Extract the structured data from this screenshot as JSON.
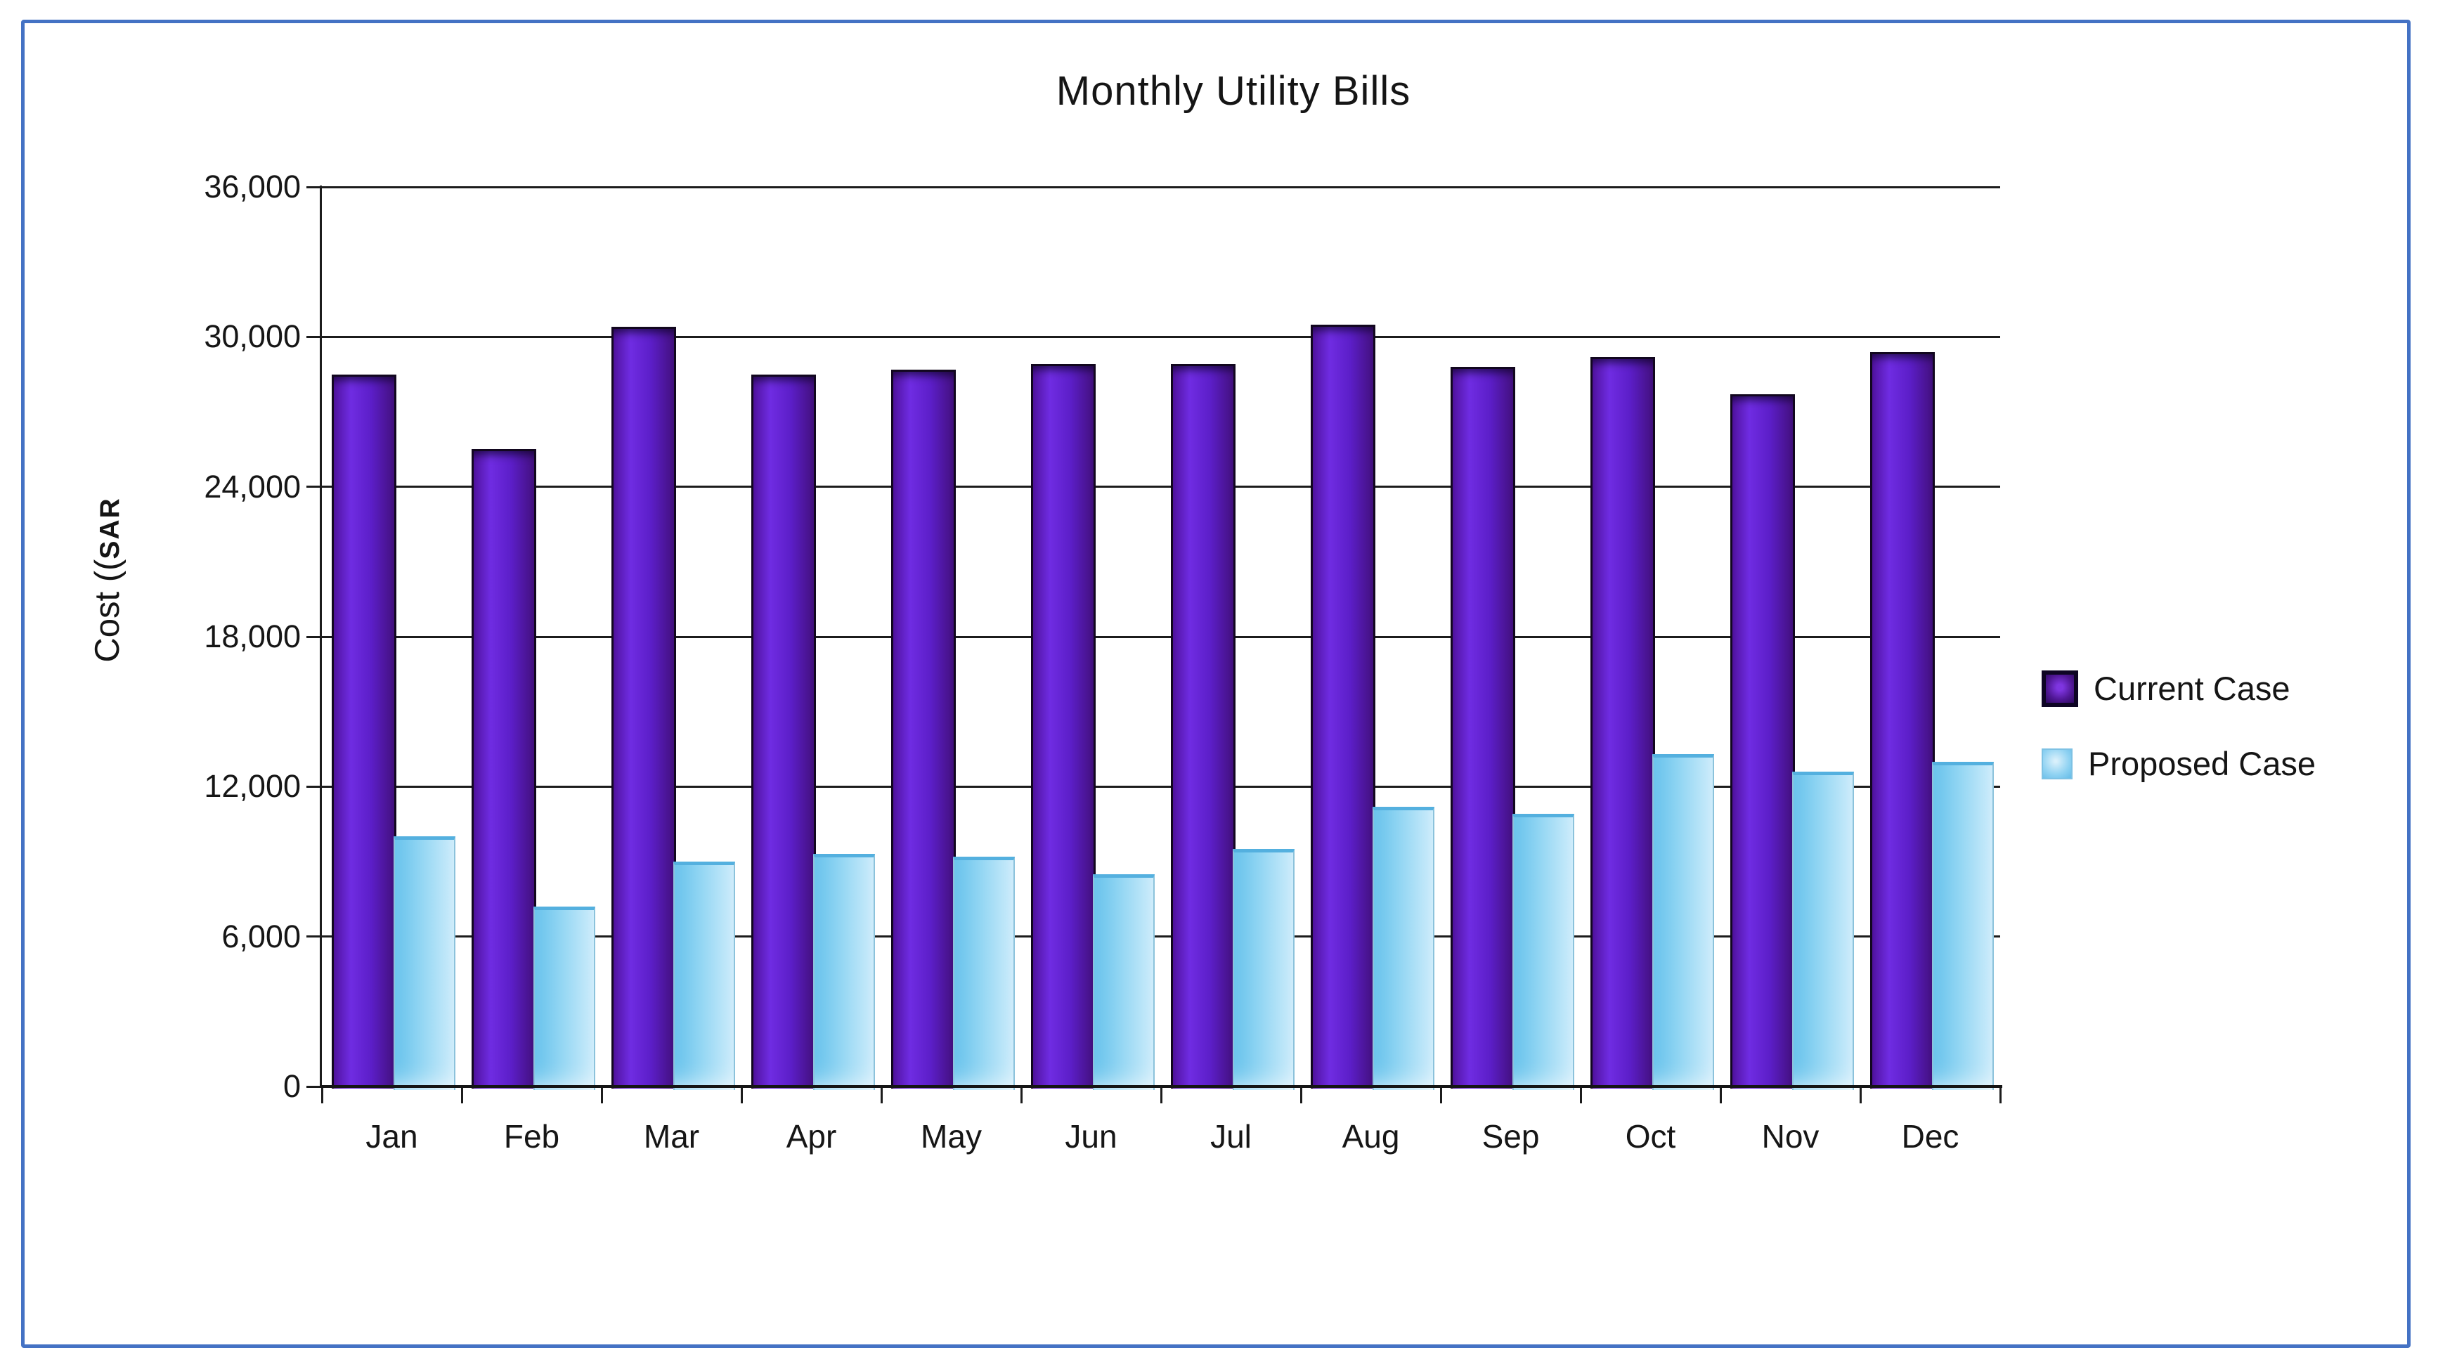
{
  "title": "Monthly Utility Bills",
  "y_axis": {
    "title_main": "Cost ((",
    "title_unit": "SAR",
    "tick_labels": [
      "0",
      "6,000",
      "12,000",
      "18,000",
      "24,000",
      "30,000",
      "36,000"
    ],
    "max": 36000,
    "step": 6000
  },
  "colors": {
    "current_bar": "#5c1ec8",
    "proposed_bar": "#93d6f3",
    "frame_border": "#4472C4",
    "axis": "#1c1c1c"
  },
  "chart_data": {
    "type": "bar",
    "title": "Monthly Utility Bills",
    "xlabel": "",
    "ylabel": "Cost ((SAR",
    "ylim": [
      0,
      36000
    ],
    "grid": true,
    "legend_position": "right",
    "categories": [
      "Jan",
      "Feb",
      "Mar",
      "Apr",
      "May",
      "Jun",
      "Jul",
      "Aug",
      "Sep",
      "Oct",
      "Nov",
      "Dec"
    ],
    "series": [
      {
        "name": "Current Case",
        "color": "#5c1ec8",
        "values": [
          28500,
          25500,
          30400,
          28500,
          28700,
          28900,
          28900,
          30500,
          28800,
          29200,
          27700,
          29400
        ]
      },
      {
        "name": "Proposed Case",
        "color": "#93d6f3",
        "values": [
          10000,
          7200,
          9000,
          9300,
          9200,
          8500,
          9500,
          11200,
          10900,
          13300,
          12600,
          13000
        ]
      }
    ]
  }
}
